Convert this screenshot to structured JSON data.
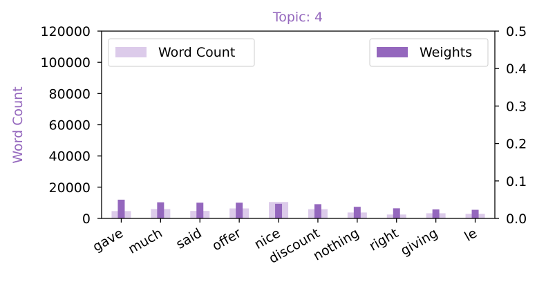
{
  "chart_data": {
    "type": "bar",
    "title": "Topic: 4",
    "ylabel": "Word Count",
    "categories": [
      "gave",
      "much",
      "said",
      "offer",
      "nice",
      "discount",
      "nothing",
      "right",
      "giving",
      "le"
    ],
    "series": [
      {
        "name": "Word Count",
        "axis": "left",
        "values": [
          4700,
          6000,
          4800,
          6400,
          10500,
          5900,
          3800,
          2500,
          3300,
          2900
        ]
      },
      {
        "name": "Weights",
        "axis": "right",
        "values": [
          0.05,
          0.043,
          0.042,
          0.042,
          0.039,
          0.038,
          0.031,
          0.027,
          0.024,
          0.023
        ]
      }
    ],
    "ylim_left": [
      0,
      120000
    ],
    "ylim_right": [
      0,
      0.5
    ],
    "yticks_left": [
      "0",
      "20000",
      "40000",
      "60000",
      "80000",
      "100000",
      "120000"
    ],
    "yticks_right": [
      "0.0",
      "0.1",
      "0.2",
      "0.3",
      "0.4",
      "0.5"
    ],
    "grid": false,
    "legends": {
      "word_count": "top-left",
      "weights": "top-right"
    },
    "colors": {
      "word_count": "#dccbea",
      "weights": "#9467bd",
      "title": "#9467bd",
      "ylabel": "#9467bd"
    }
  }
}
